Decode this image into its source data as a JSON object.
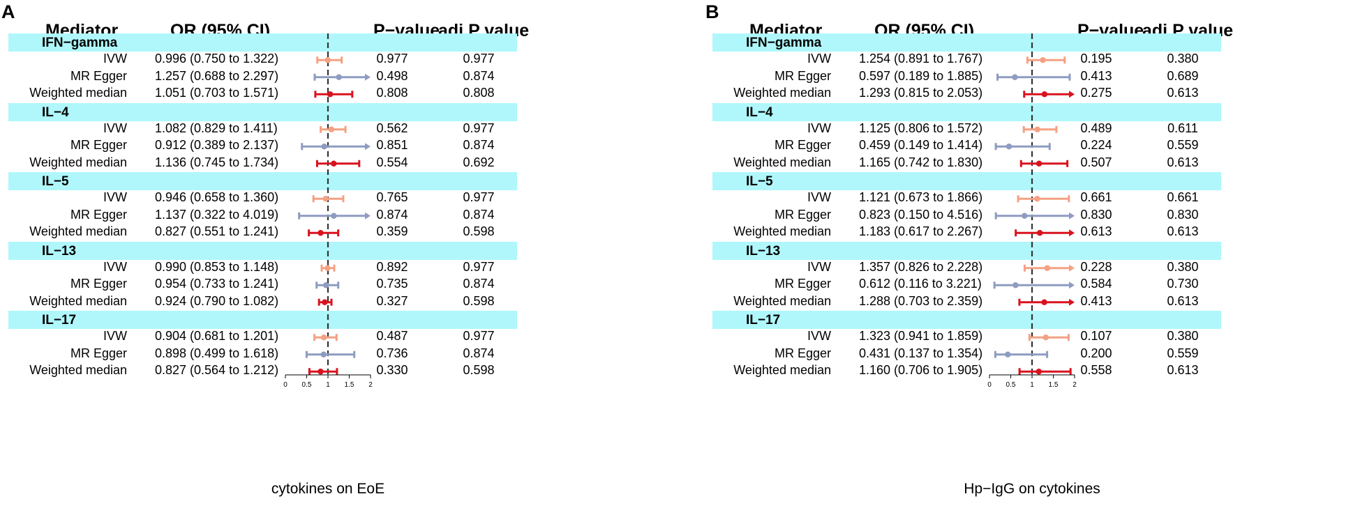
{
  "colors": {
    "band": "#aff7fb",
    "IVW": "#f4a183",
    "MR Egger": "#8e9cc1",
    "Weighted median": "#d9131e",
    "refline": "#333333"
  },
  "headers": {
    "mediator": "Mediator",
    "or": "OR (95% CI)",
    "p": "P−value",
    "adj": "adj P value"
  },
  "panels": [
    {
      "letter": "A",
      "caption": "cytokines on EoE",
      "chart_data": {
        "type": "forest",
        "title": "cytokines on EoE",
        "xlim": [
          0,
          2
        ],
        "xticks": [
          0,
          0.5,
          1,
          1.5,
          2
        ],
        "xticklabels": [
          "0",
          "0.5",
          "1",
          "1.5",
          "2"
        ],
        "ref_line": 1,
        "groups": [
          {
            "name": "IFN−gamma",
            "rows": [
              {
                "method": "IVW",
                "or": 0.996,
                "lo": 0.75,
                "hi": 1.322,
                "ci_text": "0.996 (0.750 to 1.322)",
                "p": "0.977",
                "adj": "0.977"
              },
              {
                "method": "MR Egger",
                "or": 1.257,
                "lo": 0.688,
                "hi": 2.297,
                "ci_text": "1.257 (0.688 to 2.297)",
                "p": "0.498",
                "adj": "0.874"
              },
              {
                "method": "Weighted median",
                "or": 1.051,
                "lo": 0.703,
                "hi": 1.571,
                "ci_text": "1.051 (0.703 to 1.571)",
                "p": "0.808",
                "adj": "0.808"
              }
            ]
          },
          {
            "name": "IL−4",
            "rows": [
              {
                "method": "IVW",
                "or": 1.082,
                "lo": 0.829,
                "hi": 1.411,
                "ci_text": "1.082 (0.829 to 1.411)",
                "p": "0.562",
                "adj": "0.977"
              },
              {
                "method": "MR Egger",
                "or": 0.912,
                "lo": 0.389,
                "hi": 2.137,
                "ci_text": "0.912 (0.389 to 2.137)",
                "p": "0.851",
                "adj": "0.874"
              },
              {
                "method": "Weighted median",
                "or": 1.136,
                "lo": 0.745,
                "hi": 1.734,
                "ci_text": "1.136 (0.745 to 1.734)",
                "p": "0.554",
                "adj": "0.692"
              }
            ]
          },
          {
            "name": "IL−5",
            "rows": [
              {
                "method": "IVW",
                "or": 0.946,
                "lo": 0.658,
                "hi": 1.36,
                "ci_text": "0.946 (0.658 to 1.360)",
                "p": "0.765",
                "adj": "0.977"
              },
              {
                "method": "MR Egger",
                "or": 1.137,
                "lo": 0.322,
                "hi": 4.019,
                "ci_text": "1.137 (0.322 to 4.019)",
                "p": "0.874",
                "adj": "0.874"
              },
              {
                "method": "Weighted median",
                "or": 0.827,
                "lo": 0.551,
                "hi": 1.241,
                "ci_text": "0.827 (0.551 to 1.241)",
                "p": "0.359",
                "adj": "0.598"
              }
            ]
          },
          {
            "name": "IL−13",
            "rows": [
              {
                "method": "IVW",
                "or": 0.99,
                "lo": 0.853,
                "hi": 1.148,
                "ci_text": "0.990 (0.853 to 1.148)",
                "p": "0.892",
                "adj": "0.977"
              },
              {
                "method": "MR Egger",
                "or": 0.954,
                "lo": 0.733,
                "hi": 1.241,
                "ci_text": "0.954 (0.733 to 1.241)",
                "p": "0.735",
                "adj": "0.874"
              },
              {
                "method": "Weighted median",
                "or": 0.924,
                "lo": 0.79,
                "hi": 1.082,
                "ci_text": "0.924 (0.790 to 1.082)",
                "p": "0.327",
                "adj": "0.598"
              }
            ]
          },
          {
            "name": "IL−17",
            "rows": [
              {
                "method": "IVW",
                "or": 0.904,
                "lo": 0.681,
                "hi": 1.201,
                "ci_text": "0.904 (0.681 to 1.201)",
                "p": "0.487",
                "adj": "0.977"
              },
              {
                "method": "MR Egger",
                "or": 0.898,
                "lo": 0.499,
                "hi": 1.618,
                "ci_text": "0.898 (0.499 to 1.618)",
                "p": "0.736",
                "adj": "0.874"
              },
              {
                "method": "Weighted median",
                "or": 0.827,
                "lo": 0.564,
                "hi": 1.212,
                "ci_text": "0.827 (0.564 to 1.212)",
                "p": "0.330",
                "adj": "0.598"
              }
            ]
          }
        ]
      }
    },
    {
      "letter": "B",
      "caption": "Hp−IgG on cytokines",
      "chart_data": {
        "type": "forest",
        "title": "Hp−IgG on cytokines",
        "xlim": [
          0,
          2
        ],
        "xticks": [
          0,
          0.5,
          1,
          1.5,
          2
        ],
        "xticklabels": [
          "0",
          "0.5",
          "1",
          "1.5",
          "2"
        ],
        "ref_line": 1,
        "groups": [
          {
            "name": "IFN−gamma",
            "rows": [
              {
                "method": "IVW",
                "or": 1.254,
                "lo": 0.891,
                "hi": 1.767,
                "ci_text": "1.254 (0.891 to 1.767)",
                "p": "0.195",
                "adj": "0.380"
              },
              {
                "method": "MR Egger",
                "or": 0.597,
                "lo": 0.189,
                "hi": 1.885,
                "ci_text": "0.597 (0.189 to 1.885)",
                "p": "0.413",
                "adj": "0.689"
              },
              {
                "method": "Weighted median",
                "or": 1.293,
                "lo": 0.815,
                "hi": 2.053,
                "ci_text": "1.293 (0.815 to 2.053)",
                "p": "0.275",
                "adj": "0.613"
              }
            ]
          },
          {
            "name": "IL−4",
            "rows": [
              {
                "method": "IVW",
                "or": 1.125,
                "lo": 0.806,
                "hi": 1.572,
                "ci_text": "1.125 (0.806 to 1.572)",
                "p": "0.489",
                "adj": "0.611"
              },
              {
                "method": "MR Egger",
                "or": 0.459,
                "lo": 0.149,
                "hi": 1.414,
                "ci_text": "0.459 (0.149 to 1.414)",
                "p": "0.224",
                "adj": "0.559"
              },
              {
                "method": "Weighted median",
                "or": 1.165,
                "lo": 0.742,
                "hi": 1.83,
                "ci_text": "1.165 (0.742 to 1.830)",
                "p": "0.507",
                "adj": "0.613"
              }
            ]
          },
          {
            "name": "IL−5",
            "rows": [
              {
                "method": "IVW",
                "or": 1.121,
                "lo": 0.673,
                "hi": 1.866,
                "ci_text": "1.121 (0.673 to 1.866)",
                "p": "0.661",
                "adj": "0.661"
              },
              {
                "method": "MR Egger",
                "or": 0.823,
                "lo": 0.15,
                "hi": 4.516,
                "ci_text": "0.823 (0.150 to 4.516)",
                "p": "0.830",
                "adj": "0.830"
              },
              {
                "method": "Weighted median",
                "or": 1.183,
                "lo": 0.617,
                "hi": 2.267,
                "ci_text": "1.183 (0.617 to 2.267)",
                "p": "0.613",
                "adj": "0.613"
              }
            ]
          },
          {
            "name": "IL−13",
            "rows": [
              {
                "method": "IVW",
                "or": 1.357,
                "lo": 0.826,
                "hi": 2.228,
                "ci_text": "1.357 (0.826 to 2.228)",
                "p": "0.228",
                "adj": "0.380"
              },
              {
                "method": "MR Egger",
                "or": 0.612,
                "lo": 0.116,
                "hi": 3.221,
                "ci_text": "0.612 (0.116 to 3.221)",
                "p": "0.584",
                "adj": "0.730"
              },
              {
                "method": "Weighted median",
                "or": 1.288,
                "lo": 0.703,
                "hi": 2.359,
                "ci_text": "1.288 (0.703 to 2.359)",
                "p": "0.413",
                "adj": "0.613"
              }
            ]
          },
          {
            "name": "IL−17",
            "rows": [
              {
                "method": "IVW",
                "or": 1.323,
                "lo": 0.941,
                "hi": 1.859,
                "ci_text": "1.323 (0.941 to 1.859)",
                "p": "0.107",
                "adj": "0.380"
              },
              {
                "method": "MR Egger",
                "or": 0.431,
                "lo": 0.137,
                "hi": 1.354,
                "ci_text": "0.431 (0.137 to 1.354)",
                "p": "0.200",
                "adj": "0.559"
              },
              {
                "method": "Weighted median",
                "or": 1.16,
                "lo": 0.706,
                "hi": 1.905,
                "ci_text": "1.160 (0.706 to 1.905)",
                "p": "0.558",
                "adj": "0.613"
              }
            ]
          }
        ]
      }
    }
  ]
}
